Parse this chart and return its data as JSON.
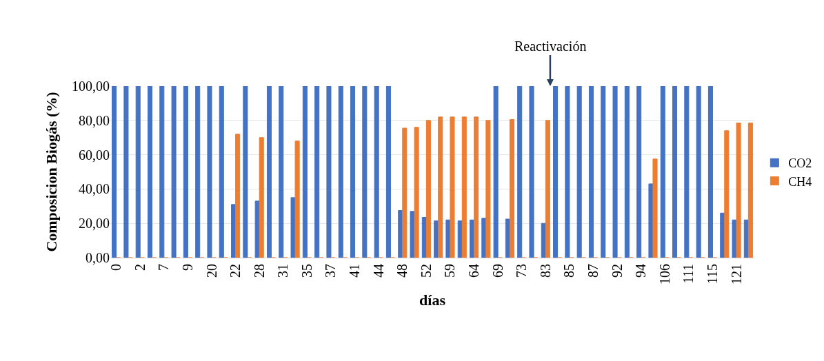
{
  "chart_data": {
    "type": "bar",
    "xlabel": "días",
    "ylabel": "Composicion Biogás (%)",
    "categories": [
      "0",
      null,
      "2",
      null,
      "7",
      null,
      "9",
      null,
      "20",
      null,
      "22",
      null,
      "28",
      null,
      "31",
      null,
      "35",
      null,
      "37",
      null,
      "41",
      null,
      "44",
      null,
      "48",
      null,
      "52",
      null,
      "59",
      null,
      "64",
      null,
      "69",
      null,
      "73",
      null,
      "83",
      null,
      "85",
      null,
      "87",
      null,
      "92",
      null,
      "94",
      null,
      "106",
      null,
      "111",
      null,
      "115",
      null,
      "121",
      null
    ],
    "series": [
      {
        "name": "CO2",
        "color": "#4472c4",
        "values": [
          100,
          100,
          100,
          100,
          100,
          100,
          100,
          100,
          100,
          100,
          31,
          100,
          33,
          100,
          100,
          35,
          100,
          100,
          100,
          100,
          100,
          100,
          100,
          100,
          27.5,
          27,
          23.5,
          21.5,
          22,
          21.5,
          22,
          23,
          100,
          22.5,
          100,
          100,
          20,
          100,
          100,
          100,
          100,
          100,
          100,
          100,
          100,
          43,
          100,
          100,
          100,
          100,
          100,
          26,
          22,
          22
        ]
      },
      {
        "name": "CH4",
        "color": "#ed7d31",
        "values": [
          0,
          0,
          0,
          0,
          0,
          0,
          0,
          0,
          0,
          0,
          72,
          0,
          70,
          0,
          0,
          68,
          0,
          0,
          0,
          0,
          0,
          0,
          0,
          0,
          75.5,
          76,
          80,
          82,
          82,
          82,
          82,
          80,
          0,
          80.5,
          0,
          0,
          80,
          0,
          0,
          0,
          0,
          0,
          0,
          0,
          0,
          57.5,
          0,
          0,
          0,
          0,
          0,
          74,
          78.5,
          78.5
        ]
      }
    ],
    "ylim": [
      0,
      100
    ],
    "yticks": [
      {
        "value": 0,
        "label": "0,00"
      },
      {
        "value": 20,
        "label": "20,00"
      },
      {
        "value": 40,
        "label": "40,00"
      },
      {
        "value": 60,
        "label": "60,00"
      },
      {
        "value": 80,
        "label": "80,00"
      },
      {
        "value": 100,
        "label": "100,00"
      }
    ],
    "grid": "y",
    "legend": "right",
    "annotations": [
      "Reactivación"
    ]
  }
}
